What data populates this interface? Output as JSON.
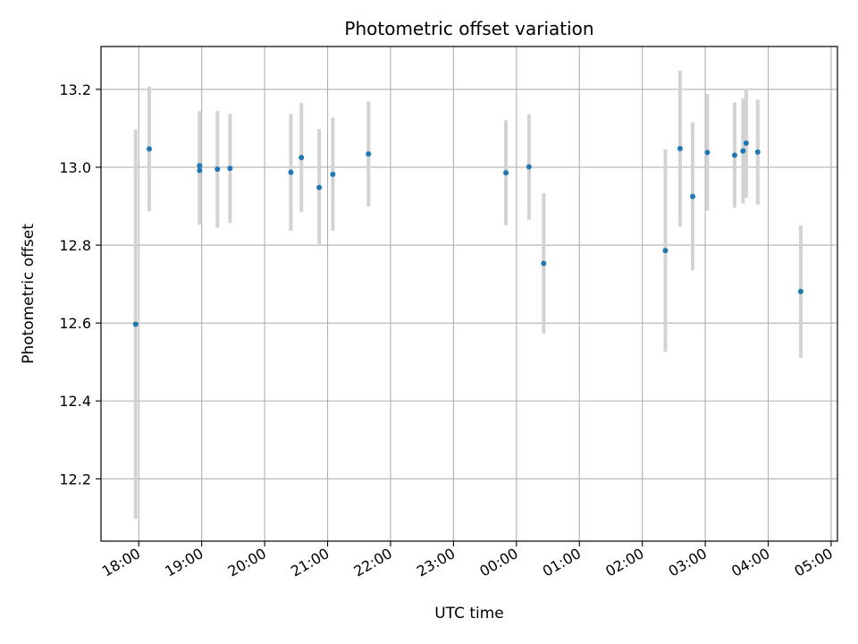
{
  "chart_data": {
    "type": "scatter",
    "title": "Photometric offset variation",
    "xlabel": "UTC time",
    "ylabel": "Photometric offset",
    "x_axis_kind": "time",
    "grid": true,
    "ylim": [
      12.04,
      13.31
    ],
    "xlim_hours": [
      17.4,
      29.1
    ],
    "y_ticks": [
      12.2,
      12.4,
      12.6,
      12.8,
      13.0,
      13.2
    ],
    "x_ticks": [
      {
        "hour": 18,
        "label": "18:00"
      },
      {
        "hour": 19,
        "label": "19:00"
      },
      {
        "hour": 20,
        "label": "20:00"
      },
      {
        "hour": 21,
        "label": "21:00"
      },
      {
        "hour": 22,
        "label": "22:00"
      },
      {
        "hour": 23,
        "label": "23:00"
      },
      {
        "hour": 24,
        "label": "00:00"
      },
      {
        "hour": 25,
        "label": "01:00"
      },
      {
        "hour": 26,
        "label": "02:00"
      },
      {
        "hour": 27,
        "label": "03:00"
      },
      {
        "hour": 28,
        "label": "04:00"
      },
      {
        "hour": 29,
        "label": "05:00"
      }
    ],
    "points": [
      {
        "time": "17:57",
        "y": 12.597,
        "err": 0.5
      },
      {
        "time": "18:10",
        "y": 13.047,
        "err": 0.16
      },
      {
        "time": "18:58",
        "y": 13.004,
        "err": 0.14
      },
      {
        "time": "18:58",
        "y": 12.992,
        "err": 0.14
      },
      {
        "time": "19:15",
        "y": 12.995,
        "err": 0.15
      },
      {
        "time": "19:27",
        "y": 12.997,
        "err": 0.14
      },
      {
        "time": "20:25",
        "y": 12.987,
        "err": 0.15
      },
      {
        "time": "20:35",
        "y": 13.025,
        "err": 0.14
      },
      {
        "time": "20:52",
        "y": 12.948,
        "err": 0.15
      },
      {
        "time": "21:05",
        "y": 12.982,
        "err": 0.145
      },
      {
        "time": "21:39",
        "y": 13.034,
        "err": 0.135
      },
      {
        "time": "23:50",
        "y": 12.986,
        "err": 0.135
      },
      {
        "time": "00:12",
        "y": 13.001,
        "err": 0.135
      },
      {
        "time": "00:26",
        "y": 12.753,
        "err": 0.18
      },
      {
        "time": "02:22",
        "y": 12.786,
        "err": 0.26
      },
      {
        "time": "02:36",
        "y": 13.048,
        "err": 0.2
      },
      {
        "time": "02:48",
        "y": 12.925,
        "err": 0.19
      },
      {
        "time": "03:02",
        "y": 13.038,
        "err": 0.15
      },
      {
        "time": "03:28",
        "y": 13.031,
        "err": 0.135
      },
      {
        "time": "03:36",
        "y": 13.042,
        "err": 0.135
      },
      {
        "time": "03:39",
        "y": 13.062,
        "err": 0.14
      },
      {
        "time": "03:50",
        "y": 13.039,
        "err": 0.135
      },
      {
        "time": "04:31",
        "y": 12.681,
        "err": 0.17
      }
    ],
    "colors": {
      "points": "#1f77b4",
      "errorbars": "#d3d3d3",
      "grid": "#b0b0b0",
      "axes": "#000000"
    }
  }
}
